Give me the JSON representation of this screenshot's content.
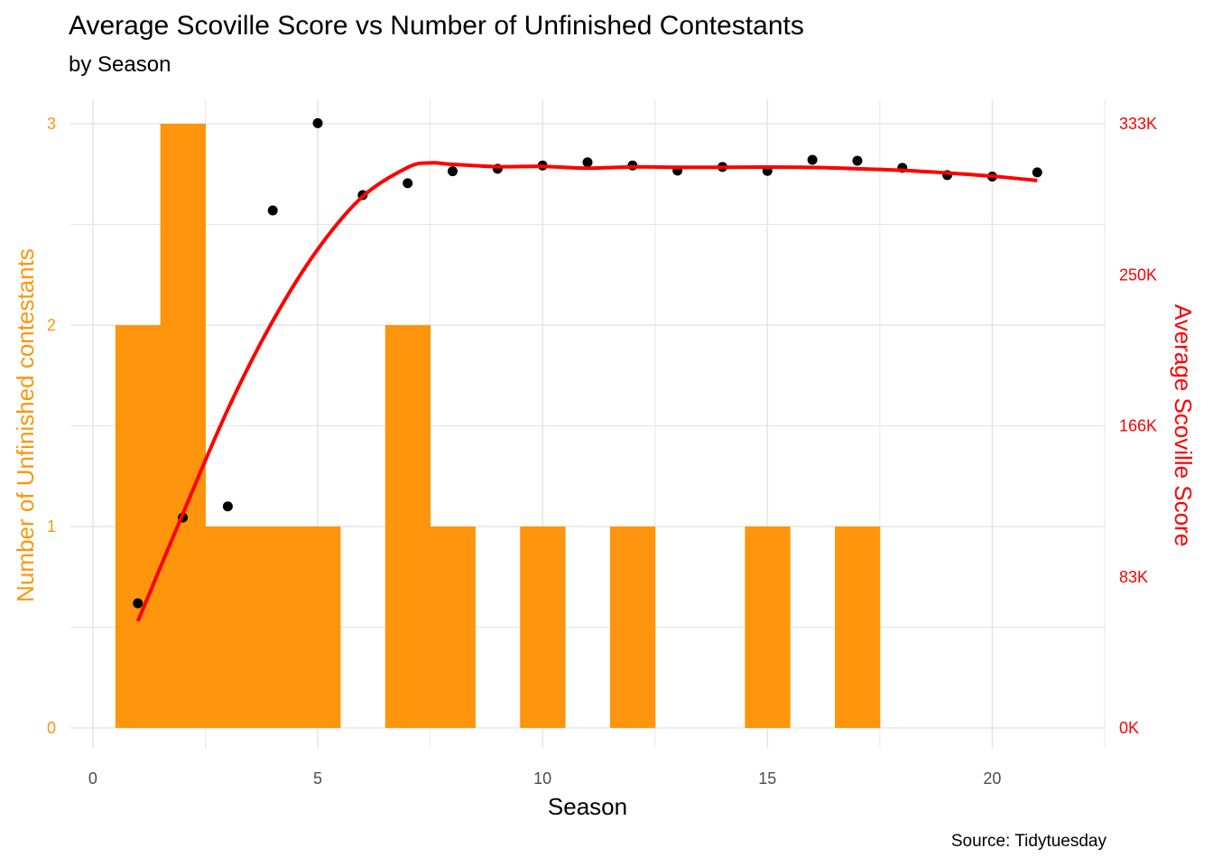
{
  "header": {
    "title": "Average Scoville Score vs Number of Unfinished Contestants",
    "subtitle": "by Season",
    "caption": "Source: Tidytuesday"
  },
  "colors": {
    "bar": "#FF950D",
    "left_axis": "#FF950D",
    "right_axis": "#FF0000",
    "points": "#000000",
    "smooth_line": "#FF0000",
    "grid": "#E5E5E5"
  },
  "chart_data": {
    "type": "bar",
    "xlabel": "Season",
    "ylabel": "Number of Unfinished contestants",
    "y2label": "Average Scoville Score",
    "xlim": [
      -0.5,
      22.5
    ],
    "ylim": [
      0,
      3
    ],
    "y2lim": [
      0,
      333000
    ],
    "x_ticks": [
      0,
      5,
      10,
      15,
      20
    ],
    "y_ticks": [
      0,
      1,
      2,
      3
    ],
    "y2_ticks": [
      "0K",
      "83K",
      "166K",
      "250K",
      "333K"
    ],
    "y2_tick_values": [
      0,
      83250,
      166500,
      249750,
      333000
    ],
    "grid": true,
    "legend": "none",
    "bars": {
      "seasons": [
        1,
        2,
        3,
        4,
        5,
        6,
        7,
        8,
        9,
        10,
        11,
        12,
        13,
        14,
        15,
        16,
        17,
        18,
        19,
        20,
        21
      ],
      "values": [
        2,
        3,
        1,
        1,
        1,
        0,
        2,
        1,
        0,
        1,
        0,
        1,
        0,
        0,
        1,
        0,
        1,
        0,
        0,
        0,
        0
      ]
    },
    "points": {
      "seasons": [
        1,
        2,
        3,
        4,
        5,
        6,
        7,
        8,
        9,
        10,
        11,
        12,
        13,
        14,
        15,
        16,
        17,
        18,
        19,
        20,
        21
      ],
      "avg_scoville": [
        68700,
        115900,
        122100,
        285200,
        333300,
        293700,
        300200,
        306800,
        308200,
        310000,
        311700,
        310000,
        307200,
        309200,
        307000,
        313100,
        312600,
        308700,
        304700,
        303900,
        306200
      ]
    },
    "smooth": {
      "seasons": [
        1,
        2,
        3,
        4,
        5,
        6,
        7,
        7.5,
        8,
        9,
        10,
        11,
        12,
        13,
        14,
        15,
        16,
        17,
        18,
        19,
        20,
        21
      ],
      "avg_scoville": [
        58800,
        118000,
        175500,
        224300,
        263800,
        292900,
        308900,
        311400,
        310600,
        309300,
        309500,
        308500,
        309200,
        309000,
        309000,
        309100,
        308900,
        308200,
        307300,
        305900,
        304100,
        301700
      ]
    }
  }
}
